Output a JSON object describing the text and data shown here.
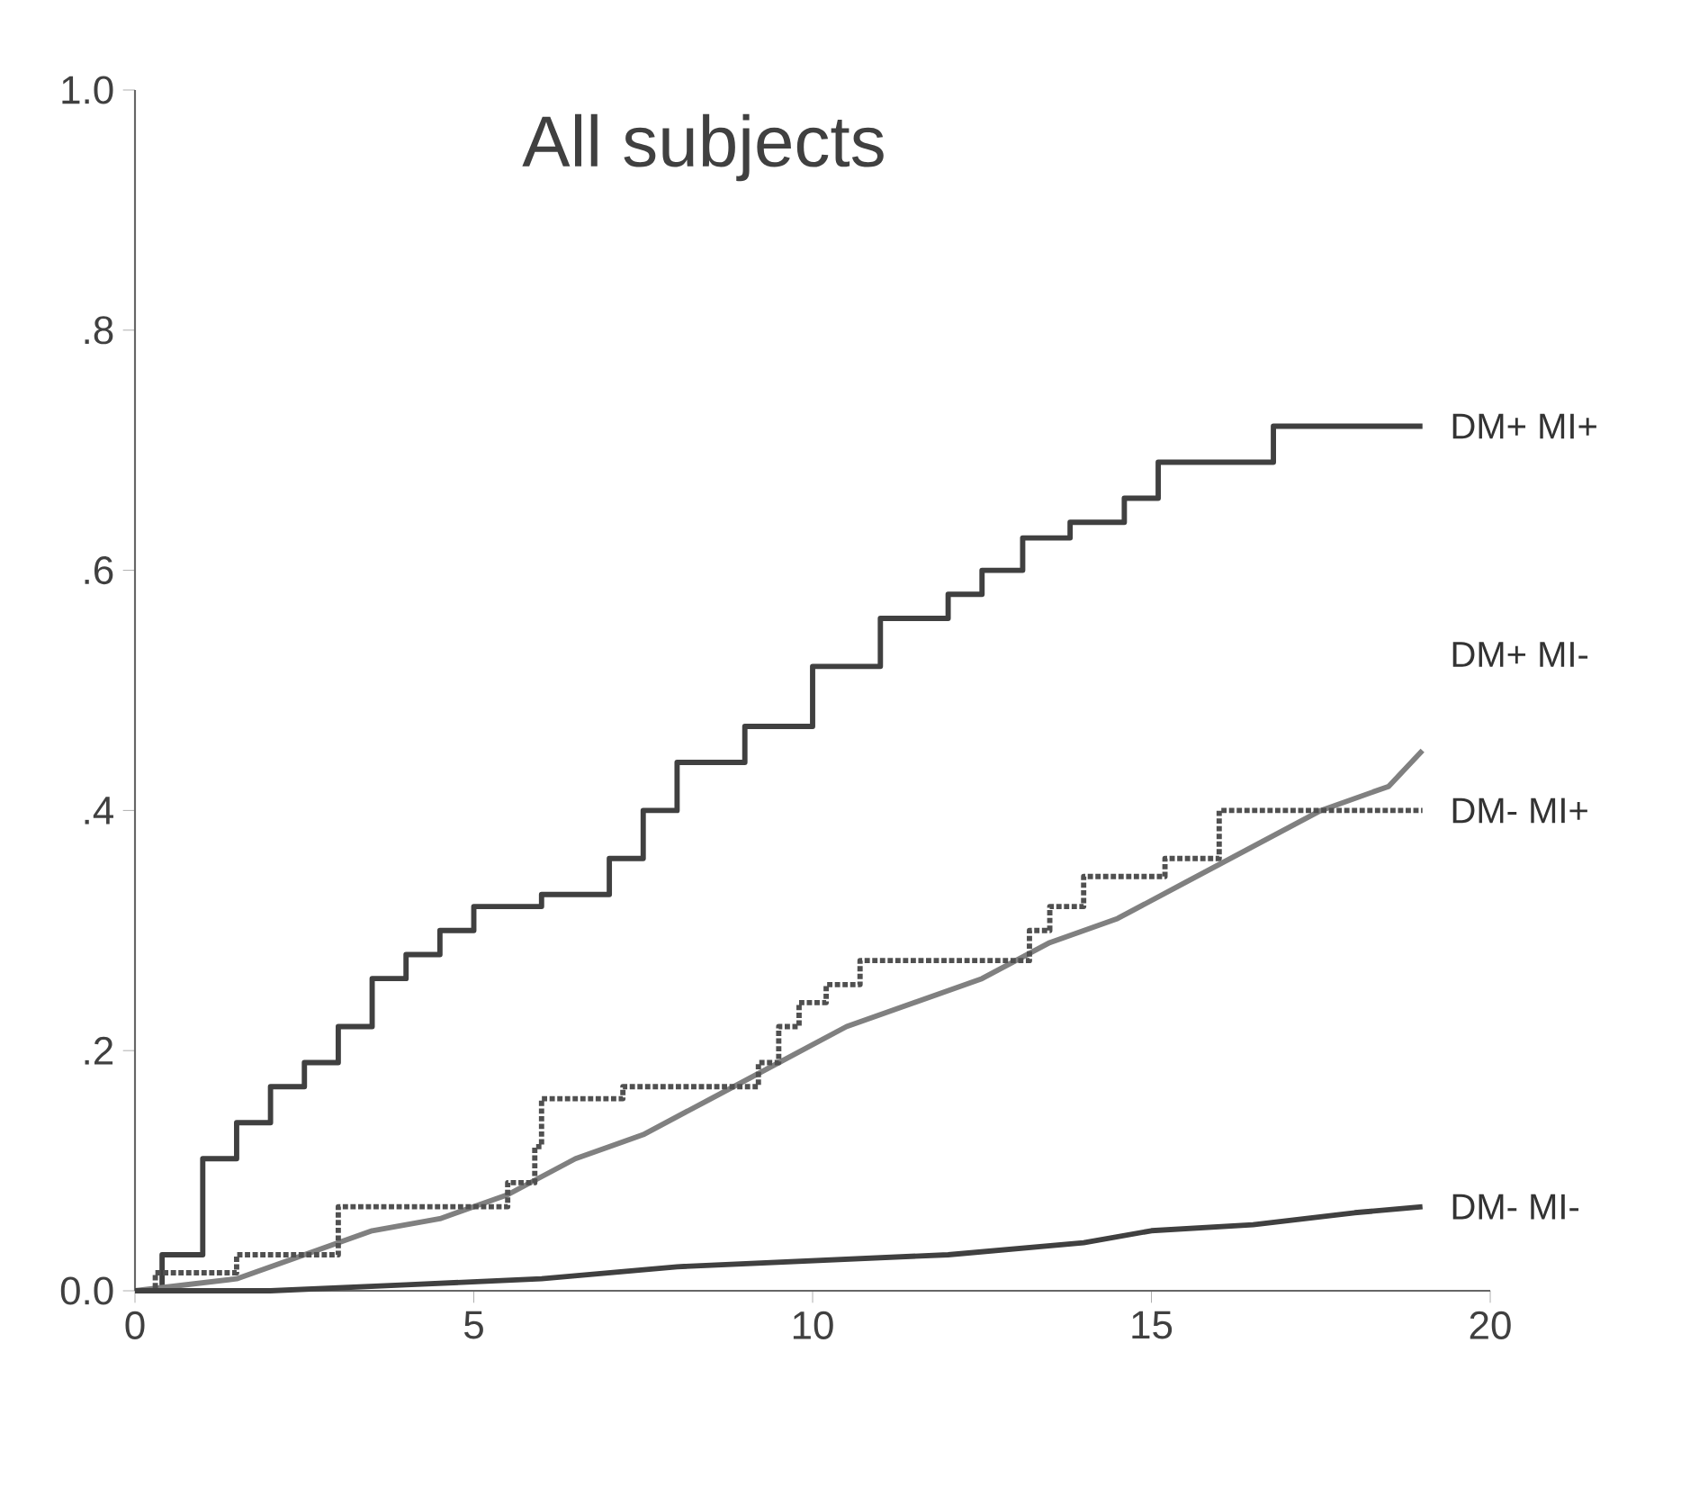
{
  "chart_data": {
    "type": "step",
    "title": "All subjects",
    "xlim": [
      0,
      20
    ],
    "ylim": [
      0,
      1
    ],
    "xticks": [
      0,
      5,
      10,
      15,
      20
    ],
    "yticks": [
      {
        "value": 0,
        "label": "0.0"
      },
      {
        "value": 0.2,
        "label": ".2"
      },
      {
        "value": 0.4,
        "label": ".4"
      },
      {
        "value": 0.6,
        "label": ".6"
      },
      {
        "value": 0.8,
        "label": ".8"
      },
      {
        "value": 1,
        "label": "1.0"
      }
    ],
    "grid": false,
    "legend": false,
    "series": [
      {
        "name": "DM+ MI+",
        "color": "#404040",
        "x": [
          0,
          0.4,
          1,
          1.5,
          2,
          2.5,
          3,
          3.5,
          4,
          4.5,
          5,
          6,
          7,
          7.5,
          8,
          9,
          10,
          11,
          12,
          12.5,
          13.1,
          13.8,
          14.6,
          15.1,
          16.5,
          16.8,
          19
        ],
        "values": [
          0,
          0.03,
          0.11,
          0.14,
          0.17,
          0.19,
          0.22,
          0.26,
          0.28,
          0.3,
          0.32,
          0.33,
          0.36,
          0.4,
          0.44,
          0.47,
          0.52,
          0.56,
          0.58,
          0.6,
          0.627,
          0.64,
          0.66,
          0.69,
          0.69,
          0.72,
          0.72
        ]
      },
      {
        "name": "DM+ MI-",
        "type": "line",
        "color": "#808080",
        "x": [
          0,
          1.5,
          2.5,
          3.5,
          4.5,
          5.5,
          6.5,
          7.5,
          8.5,
          9.5,
          10.5,
          11.5,
          12.5,
          13.5,
          14.5,
          15.5,
          16.5,
          17.5,
          18.5,
          19
        ],
        "values": [
          0,
          0.01,
          0.03,
          0.05,
          0.06,
          0.08,
          0.11,
          0.13,
          0.16,
          0.19,
          0.22,
          0.24,
          0.26,
          0.29,
          0.31,
          0.34,
          0.37,
          0.4,
          0.42,
          0.45
        ]
      },
      {
        "name": "DM- MI+",
        "color": "#505050",
        "line_style": "dotted",
        "x": [
          0,
          0.3,
          1.5,
          3,
          5.5,
          5.9,
          6,
          7.2,
          9.2,
          9.5,
          9.8,
          10.2,
          10.7,
          13.2,
          13.5,
          14,
          15.2,
          16,
          19
        ],
        "values": [
          0,
          0.015,
          0.03,
          0.07,
          0.09,
          0.12,
          0.16,
          0.17,
          0.19,
          0.22,
          0.24,
          0.255,
          0.275,
          0.3,
          0.32,
          0.345,
          0.36,
          0.4,
          0.4
        ]
      },
      {
        "name": "DM- MI-",
        "type": "line",
        "color": "#404040",
        "x": [
          0,
          2,
          4,
          6,
          8,
          10,
          12,
          14,
          15,
          16.5,
          18,
          19
        ],
        "values": [
          0,
          0,
          0.005,
          0.01,
          0.02,
          0.025,
          0.03,
          0.04,
          0.05,
          0.055,
          0.065,
          0.07
        ]
      }
    ]
  }
}
